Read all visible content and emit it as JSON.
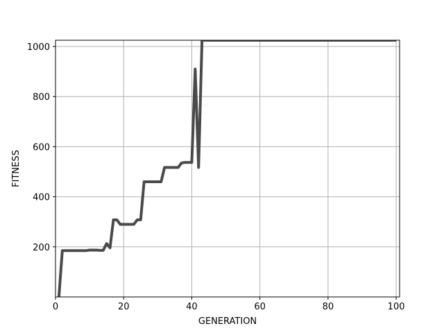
{
  "chart_data": {
    "type": "line",
    "title": "",
    "xlabel": "GENERATION",
    "ylabel": "FITNESS",
    "xlim": [
      0,
      101
    ],
    "ylim": [
      0,
      1025
    ],
    "xticks": [
      0,
      20,
      40,
      60,
      80,
      100
    ],
    "yticks": [
      200,
      400,
      600,
      800,
      1000
    ],
    "xtick_labels": [
      "0",
      "20",
      "40",
      "60",
      "80",
      "100"
    ],
    "ytick_labels": [
      "200",
      "400",
      "600",
      "800",
      "1000"
    ],
    "grid": true,
    "line_color": "#4a4a4a",
    "grid_color": "#b0b0b0",
    "series": [
      {
        "x": [
          1,
          2,
          3,
          4,
          5,
          6,
          7,
          8,
          9,
          10,
          11,
          12,
          13,
          14,
          15,
          16,
          17,
          18,
          19,
          20,
          21,
          22,
          23,
          24,
          25,
          26,
          27,
          28,
          29,
          30,
          31,
          32,
          33,
          34,
          35,
          36,
          37,
          38,
          39,
          40,
          41,
          42,
          43,
          44,
          50,
          60,
          70,
          80,
          90,
          100
        ],
        "values": [
          0,
          185,
          185,
          185,
          185,
          185,
          185,
          185,
          185,
          187,
          187,
          187,
          186,
          186,
          213,
          196,
          308,
          308,
          290,
          290,
          290,
          290,
          290,
          308,
          308,
          460,
          460,
          460,
          460,
          460,
          460,
          517,
          517,
          517,
          517,
          517,
          535,
          537,
          537,
          537,
          910,
          517,
          1025,
          1025,
          1025,
          1025,
          1025,
          1025,
          1025,
          1025
        ]
      }
    ]
  }
}
